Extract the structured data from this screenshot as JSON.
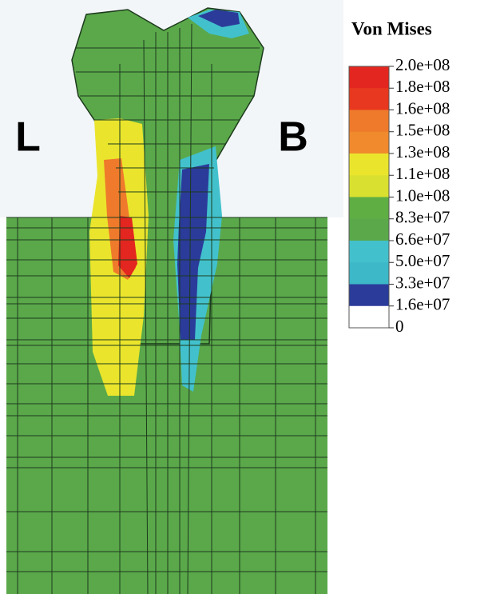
{
  "labels": {
    "left": "L",
    "right": "B"
  },
  "legend": {
    "title": "Von Mises",
    "ticks": [
      "2.0e+08",
      "1.8e+08",
      "1.6e+08",
      "1.5e+08",
      "1.3e+08",
      "1.1e+08",
      "1.0e+08",
      "8.3e+07",
      "6.6e+07",
      "5.0e+07",
      "3.3e+07",
      "1.6e+07",
      "0"
    ],
    "colors": [
      "#e3261f",
      "#e8381f",
      "#ef7a2b",
      "#f08a2c",
      "#eae52c",
      "#d9e02f",
      "#5fae44",
      "#5aa84a",
      "#42c1cd",
      "#3cb8c8",
      "#2b3b9a",
      "#ffffff"
    ]
  }
}
